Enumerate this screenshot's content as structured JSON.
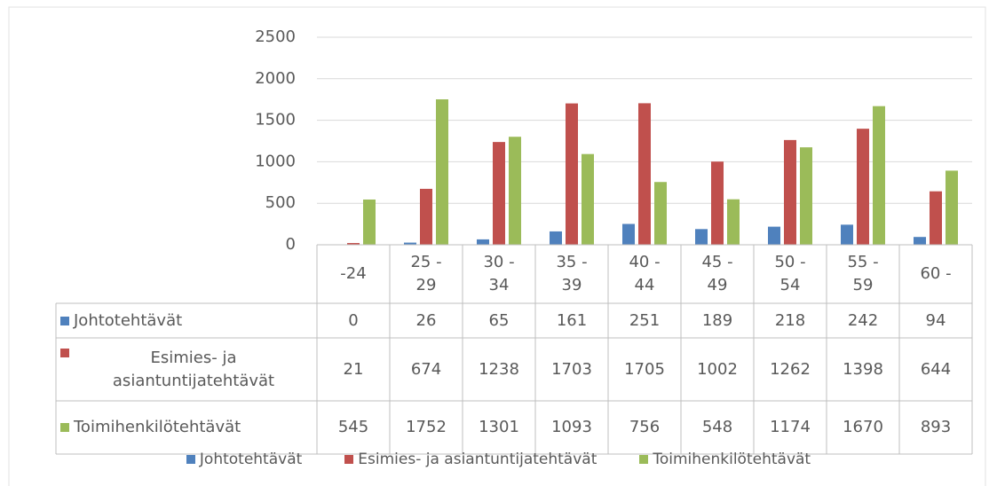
{
  "chart_data": {
    "type": "bar",
    "categories": [
      "-24",
      "25 - 29",
      "30 - 34",
      "35 - 39",
      "40 - 44",
      "45 - 49",
      "50 - 54",
      "55 - 59",
      "60 -"
    ],
    "series": [
      {
        "name": "Johtotehtävät",
        "color": "#4f81bd",
        "values": [
          0,
          26,
          65,
          161,
          251,
          189,
          218,
          242,
          94
        ]
      },
      {
        "name": "Esimies- ja asiantuntijatehtävät",
        "color": "#c0504d",
        "values": [
          21,
          674,
          1238,
          1703,
          1705,
          1002,
          1262,
          1398,
          644
        ]
      },
      {
        "name": "Toimihenkilötehtävät",
        "color": "#9bbb59",
        "values": [
          545,
          1752,
          1301,
          1093,
          756,
          548,
          1174,
          1670,
          893
        ]
      }
    ],
    "ylim": [
      0,
      2500
    ],
    "yticks": [
      0,
      500,
      1000,
      1500,
      2000,
      2500
    ],
    "grid": true,
    "data_table": true,
    "legend": "bottom"
  }
}
